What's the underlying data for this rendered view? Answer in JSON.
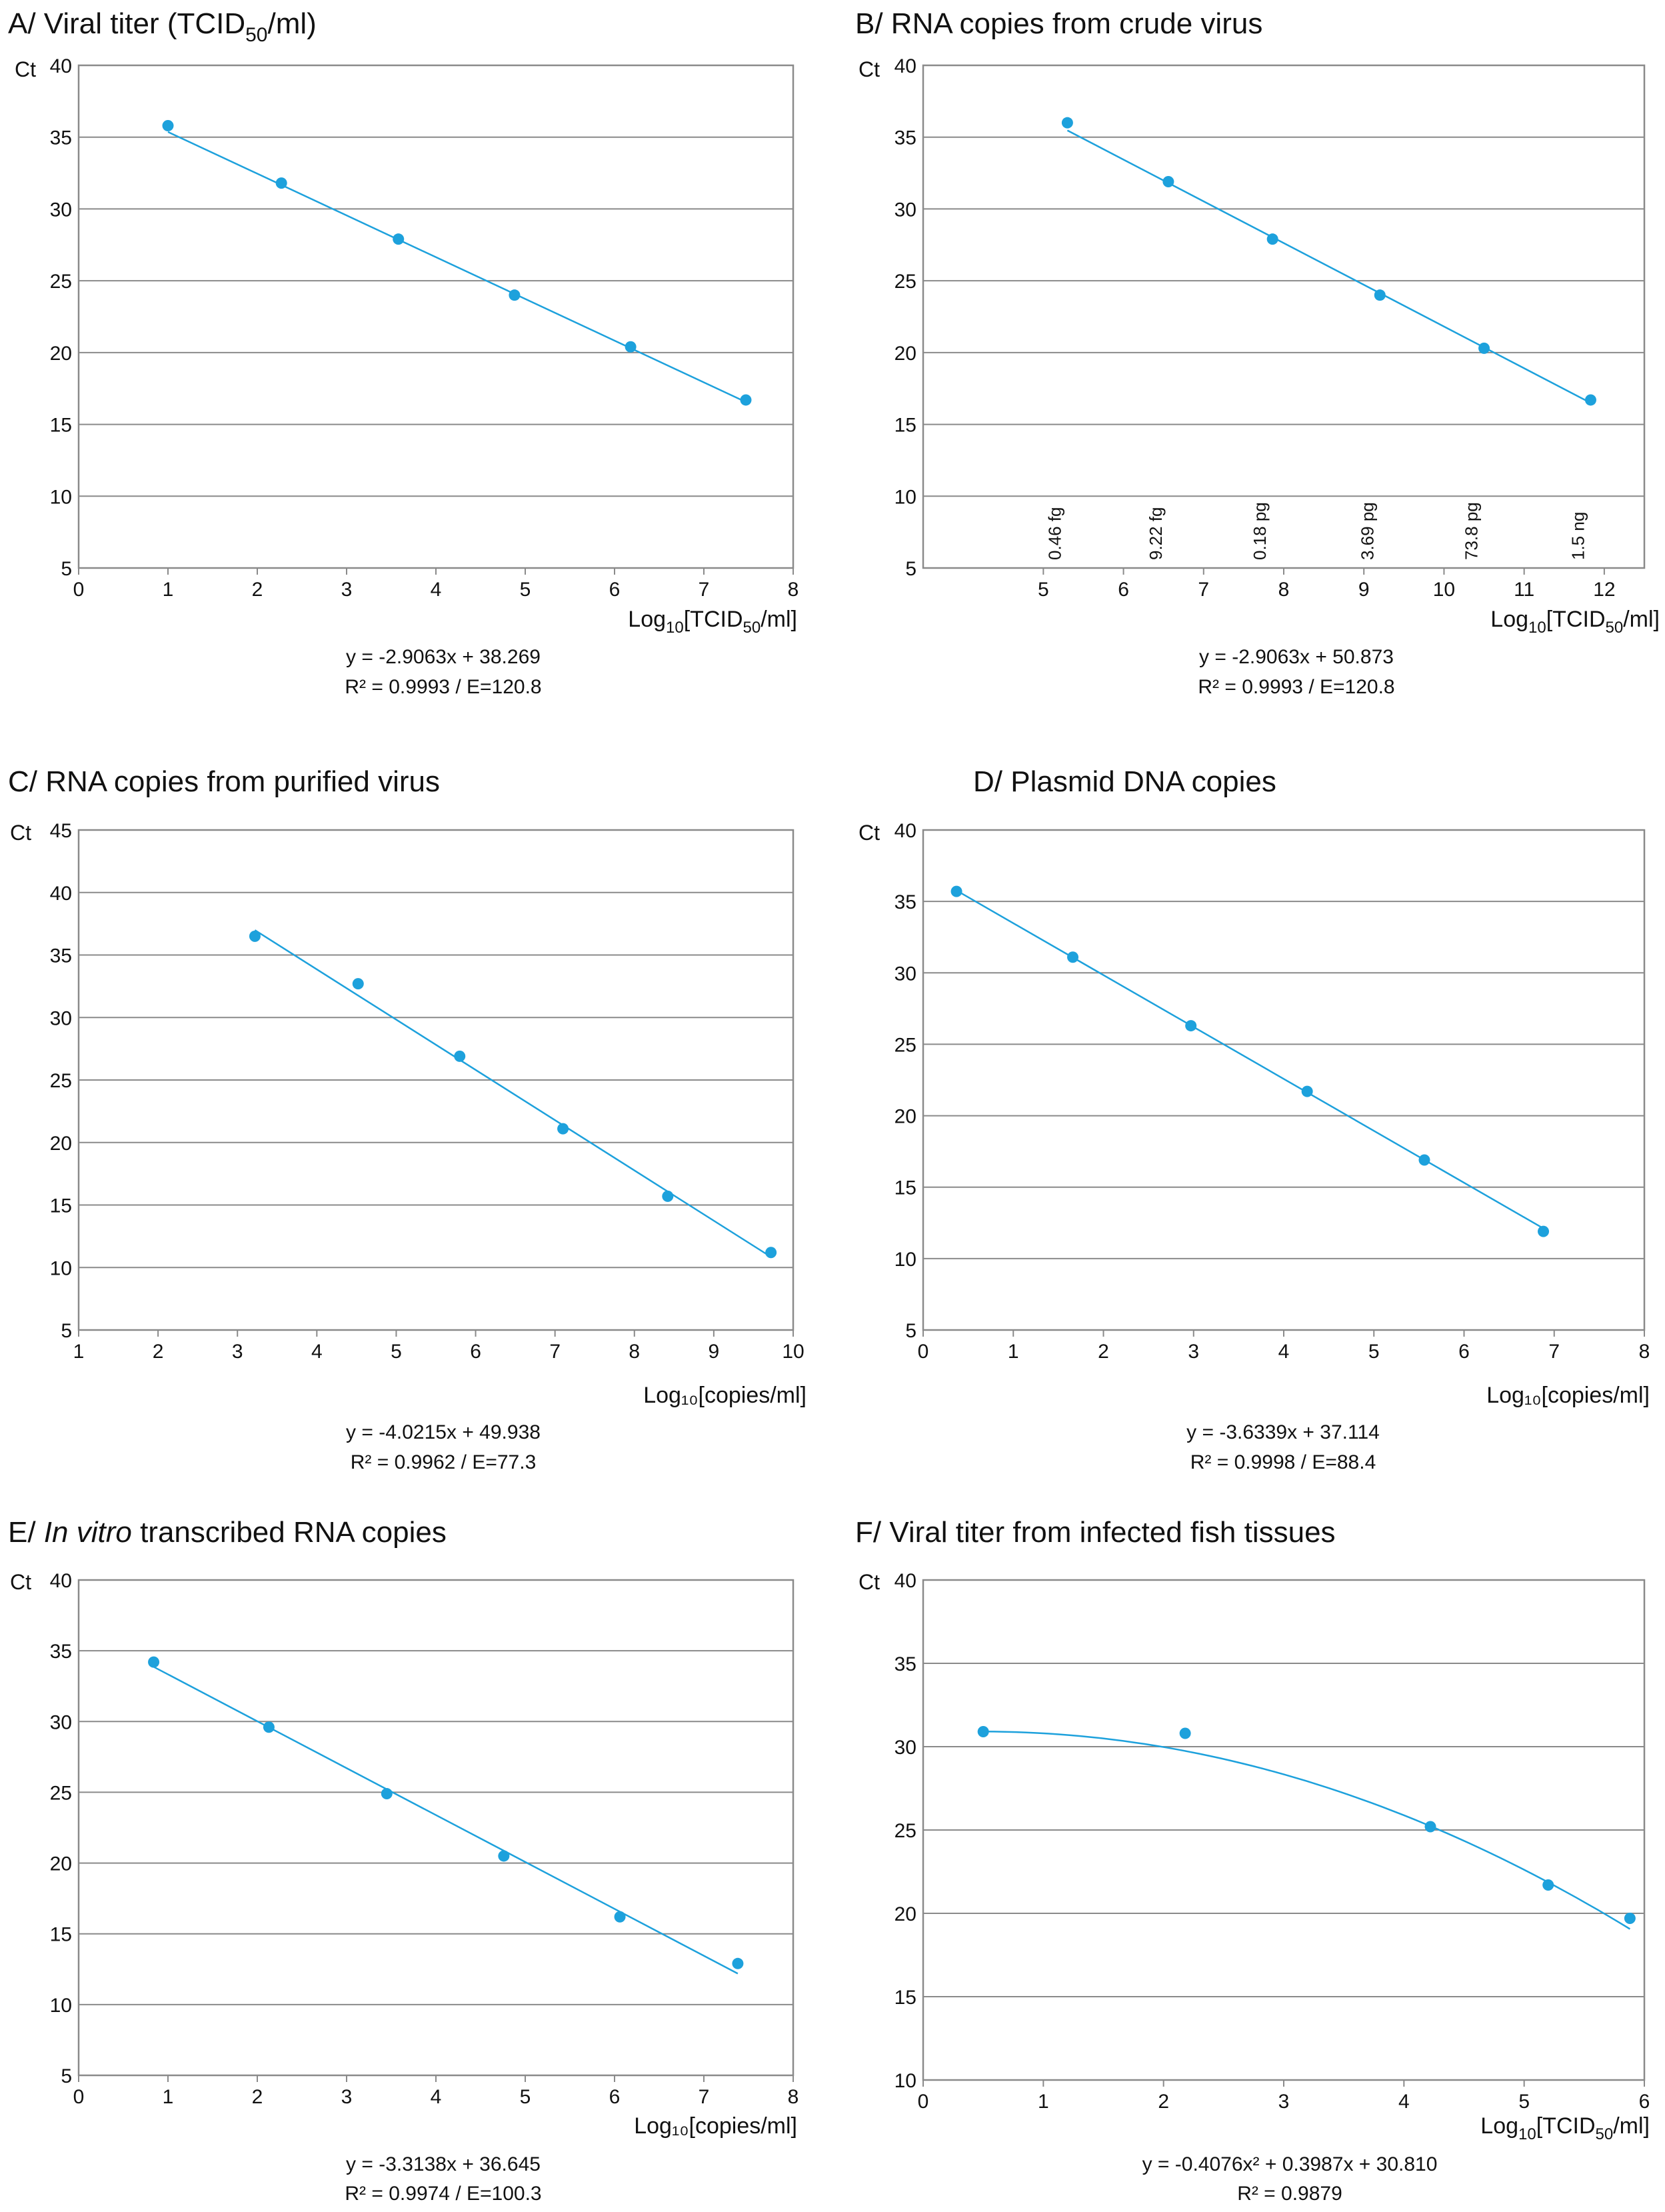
{
  "figure": {
    "accent_color": "#1da1dc",
    "grid_color": "#8a8a8a",
    "frame_color": "#8a8a8a"
  },
  "chart_data": [
    {
      "id": "A",
      "type": "scatter",
      "title": "A/ Viral titer (TCID50/ml)",
      "title_parts": {
        "pre": "A/ Viral titer (TCID",
        "sub": "50",
        "post": "/ml)"
      },
      "ylabel": "Ct",
      "xlabel": "Log10[TCID50/ml]",
      "xlabel_parts": {
        "a": "Log",
        "s1": "10",
        "b": "[TCID",
        "s2": "50",
        "c": "/ml]"
      },
      "xlim": [
        0,
        8
      ],
      "ylim": [
        5,
        40
      ],
      "xticks": [
        "0",
        "1",
        "2",
        "3",
        "4",
        "5",
        "6",
        "7",
        "8"
      ],
      "yticks": [
        "5",
        "10",
        "15",
        "20",
        "25",
        "30",
        "35",
        "40"
      ],
      "x": [
        1,
        2.27,
        3.58,
        4.88,
        6.18,
        7.47
      ],
      "y": [
        35.8,
        31.8,
        27.9,
        24.0,
        20.4,
        16.7
      ],
      "fit": {
        "kind": "linear",
        "coef": [
          -2.9063,
          38.269
        ],
        "x_range": [
          1,
          7.47
        ]
      },
      "equation": "y = -2.9063x + 38.269",
      "r2": "R² = 0.9993 / E=120.8"
    },
    {
      "id": "B",
      "type": "scatter",
      "title": "B/ RNA copies from crude virus",
      "ylabel": "Ct",
      "xlabel": "Log10[TCID50/ml]",
      "xlabel_parts": {
        "a": "Log",
        "s1": "10",
        "b": "[TCID",
        "s2": "50",
        "c": "/ml]"
      },
      "xlim": [
        3.5,
        12.5
      ],
      "ylim": [
        5,
        40
      ],
      "xtick_values": [
        5,
        6,
        7,
        8,
        9,
        10,
        11,
        12
      ],
      "xticks": [
        "5",
        "6",
        "7",
        "8",
        "9",
        "10",
        "11",
        "12"
      ],
      "yticks": [
        "5",
        "10",
        "15",
        "20",
        "25",
        "30",
        "35",
        "40"
      ],
      "x": [
        5.3,
        6.56,
        7.86,
        9.2,
        10.5,
        11.83
      ],
      "y": [
        36.0,
        31.9,
        27.9,
        24.0,
        20.3,
        16.7
      ],
      "fit": {
        "kind": "linear",
        "coef": [
          -2.9063,
          50.873
        ],
        "x_range": [
          5.3,
          11.83
        ]
      },
      "mass_labels": [
        "0.46 fg",
        "9.22 fg",
        "0.18 pg",
        "3.69 pg",
        "73.8 pg",
        "1.5 ng"
      ],
      "equation": "y = -2.9063x + 50.873",
      "r2": "R² = 0.9993 / E=120.8"
    },
    {
      "id": "C",
      "type": "scatter",
      "title": "C/ RNA copies from purified virus",
      "ylabel": "Ct",
      "xlabel": "Log₁₀[copies/ml]",
      "xlim": [
        1,
        10
      ],
      "ylim": [
        5,
        45
      ],
      "xticks": [
        "1",
        "2",
        "3",
        "4",
        "5",
        "6",
        "7",
        "8",
        "9",
        "10"
      ],
      "yticks": [
        "5",
        "10",
        "15",
        "20",
        "25",
        "30",
        "35",
        "40",
        "45"
      ],
      "x": [
        3.22,
        4.52,
        5.8,
        7.1,
        8.42,
        9.72
      ],
      "y": [
        36.5,
        32.7,
        26.9,
        21.1,
        15.7,
        11.2
      ],
      "fit": {
        "kind": "linear",
        "coef": [
          -4.0215,
          49.938
        ],
        "x_range": [
          3.22,
          9.72
        ]
      },
      "equation": "y = -4.0215x + 49.938",
      "r2": "R² = 0.9962 / E=77.3"
    },
    {
      "id": "D",
      "type": "scatter",
      "title": "D/ Plasmid DNA copies",
      "ylabel": "Ct",
      "xlabel": "Log₁₀[copies/ml]",
      "xlim": [
        0,
        8
      ],
      "ylim": [
        5,
        40
      ],
      "xticks": [
        "0",
        "1",
        "2",
        "3",
        "4",
        "5",
        "6",
        "7",
        "8"
      ],
      "yticks": [
        "5",
        "10",
        "15",
        "20",
        "25",
        "30",
        "35",
        "40"
      ],
      "x": [
        0.37,
        1.66,
        2.97,
        4.26,
        5.56,
        6.88
      ],
      "y": [
        35.7,
        31.1,
        26.3,
        21.7,
        16.9,
        11.9
      ],
      "fit": {
        "kind": "linear",
        "coef": [
          -3.6339,
          37.114
        ],
        "x_range": [
          0.37,
          6.88
        ]
      },
      "equation": "y = -3.6339x + 37.114",
      "r2": "R² = 0.9998 / E=88.4"
    },
    {
      "id": "E",
      "type": "scatter",
      "title": "E/ In vitro transcribed RNA copies",
      "title_parts": {
        "pre": "E/ ",
        "ital": "In vitro",
        "post": " transcribed RNA copies"
      },
      "ylabel": "Ct",
      "xlabel": "Log₁₀[copies/ml]",
      "xlim": [
        0,
        8
      ],
      "ylim": [
        5,
        40
      ],
      "xticks": [
        "0",
        "1",
        "2",
        "3",
        "4",
        "5",
        "6",
        "7",
        "8"
      ],
      "yticks": [
        "5",
        "10",
        "15",
        "20",
        "25",
        "30",
        "35",
        "40"
      ],
      "x": [
        0.84,
        2.13,
        3.45,
        4.76,
        6.06,
        7.38
      ],
      "y": [
        34.2,
        29.6,
        24.9,
        20.5,
        16.2,
        12.9
      ],
      "fit": {
        "kind": "linear",
        "coef": [
          -3.3138,
          36.645
        ],
        "x_range": [
          0.84,
          7.38
        ]
      },
      "equation": "y = -3.3138x + 36.645",
      "r2": "R² = 0.9974 / E=100.3"
    },
    {
      "id": "F",
      "type": "scatter",
      "title": "F/ Viral titer from infected fish tissues",
      "ylabel": "Ct",
      "xlabel": "Log10[TCID50/ml]",
      "xlabel_parts": {
        "a": "Log",
        "s1": "10",
        "b": "[TCID",
        "s2": "50",
        "c": "/ml]"
      },
      "xlim": [
        0,
        6
      ],
      "ylim": [
        10,
        40
      ],
      "xticks": [
        "0",
        "1",
        "2",
        "3",
        "4",
        "5",
        "6"
      ],
      "yticks": [
        "10",
        "15",
        "20",
        "25",
        "30",
        "35",
        "40"
      ],
      "x": [
        0.5,
        2.18,
        4.22,
        5.2,
        5.88
      ],
      "y": [
        30.9,
        30.8,
        25.2,
        21.7,
        19.7
      ],
      "fit": {
        "kind": "quadratic",
        "coef": [
          -0.4076,
          0.3987,
          30.81
        ],
        "x_range": [
          0.5,
          5.88
        ]
      },
      "equation": "y = -0.4076x² + 0.3987x + 30.810",
      "r2": "R² = 0.9879"
    }
  ]
}
